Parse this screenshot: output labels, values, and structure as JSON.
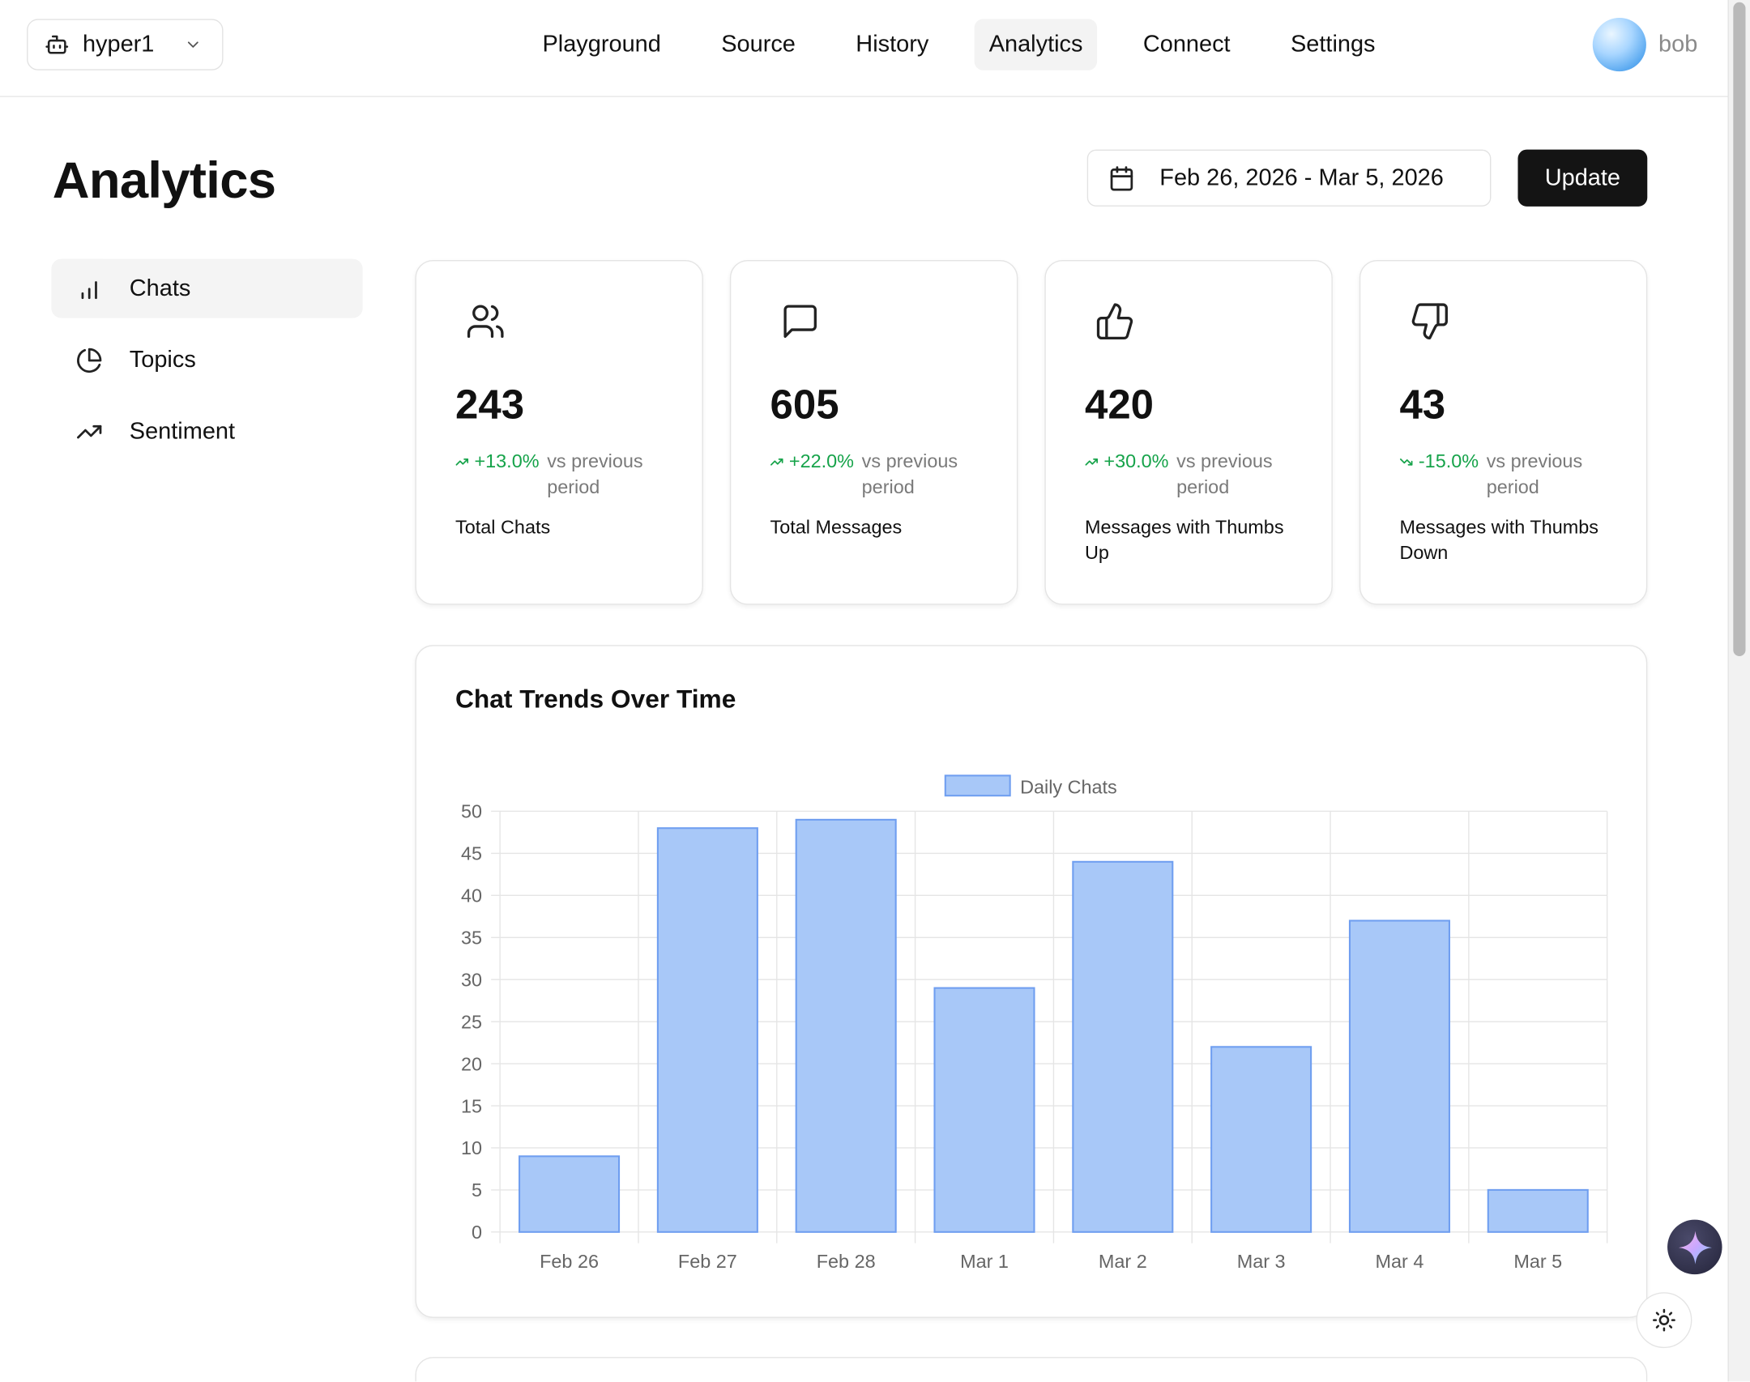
{
  "header": {
    "agent_name": "hyper1",
    "nav": [
      "Playground",
      "Source",
      "History",
      "Analytics",
      "Connect",
      "Settings"
    ],
    "active_nav": "Analytics",
    "username": "bob"
  },
  "page": {
    "title": "Analytics",
    "date_range": "Feb 26, 2026 - Mar 5, 2026",
    "update_label": "Update"
  },
  "sidebar": {
    "items": [
      {
        "label": "Chats",
        "icon": "bar-chart-icon",
        "active": true
      },
      {
        "label": "Topics",
        "icon": "pie-chart-icon",
        "active": false
      },
      {
        "label": "Sentiment",
        "icon": "trending-up-icon",
        "active": false
      }
    ]
  },
  "stats": [
    {
      "value": "243",
      "change": "+13.0%",
      "direction": "up",
      "vs": "vs previous period",
      "label": "Total Chats",
      "icon": "users-icon"
    },
    {
      "value": "605",
      "change": "+22.0%",
      "direction": "up",
      "vs": "vs previous period",
      "label": "Total Messages",
      "icon": "message-square-icon"
    },
    {
      "value": "420",
      "change": "+30.0%",
      "direction": "up",
      "vs": "vs previous period",
      "label": "Messages with Thumbs Up",
      "icon": "thumbs-up-icon"
    },
    {
      "value": "43",
      "change": "-15.0%",
      "direction": "down",
      "vs": "vs previous period",
      "label": "Messages with Thumbs Down",
      "icon": "thumbs-down-icon"
    }
  ],
  "colors": {
    "positive": "#16a34a",
    "bar_fill": "#a8c8f8",
    "bar_stroke": "#6f9ef0",
    "primary_button": "#141414"
  },
  "chart_data": {
    "type": "bar",
    "title": "Chat Trends Over Time",
    "categories": [
      "Feb 26",
      "Feb 27",
      "Feb 28",
      "Mar 1",
      "Mar 2",
      "Mar 3",
      "Mar 4",
      "Mar 5"
    ],
    "series": [
      {
        "name": "Daily Chats",
        "values": [
          9,
          48,
          49,
          29,
          44,
          22,
          37,
          5
        ]
      }
    ],
    "ylim": [
      0,
      50
    ],
    "yticks": [
      0,
      5,
      10,
      15,
      20,
      25,
      30,
      35,
      40,
      45,
      50
    ],
    "grid": true,
    "legend": "top-center"
  }
}
